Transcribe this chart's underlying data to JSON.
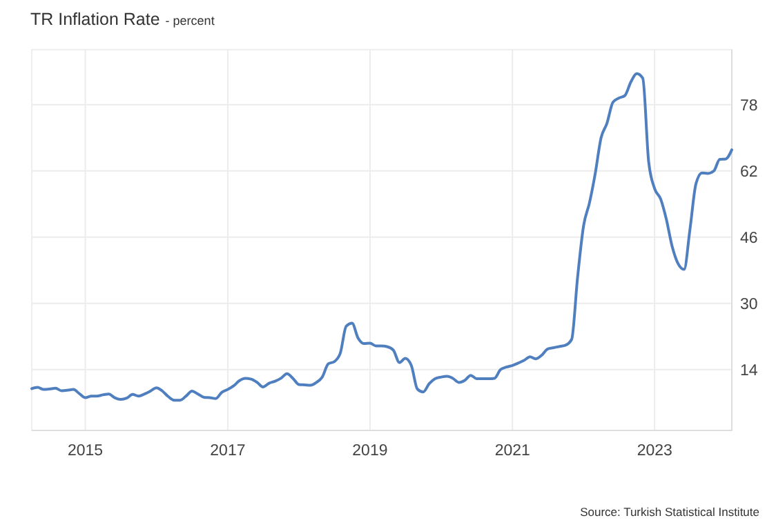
{
  "chart_data": {
    "type": "line",
    "title": "TR Inflation Rate",
    "subtitle": "- percent",
    "annotations": [
      "Source: Turkish Statistical Institute"
    ],
    "x": [
      "2014-04",
      "2014-05",
      "2014-06",
      "2014-07",
      "2014-08",
      "2014-09",
      "2014-10",
      "2014-11",
      "2014-12",
      "2015-01",
      "2015-02",
      "2015-03",
      "2015-04",
      "2015-05",
      "2015-06",
      "2015-07",
      "2015-08",
      "2015-09",
      "2015-10",
      "2015-11",
      "2015-12",
      "2016-01",
      "2016-02",
      "2016-03",
      "2016-04",
      "2016-05",
      "2016-06",
      "2016-07",
      "2016-08",
      "2016-09",
      "2016-10",
      "2016-11",
      "2016-12",
      "2017-01",
      "2017-02",
      "2017-03",
      "2017-04",
      "2017-05",
      "2017-06",
      "2017-07",
      "2017-08",
      "2017-09",
      "2017-10",
      "2017-11",
      "2017-12",
      "2018-01",
      "2018-02",
      "2018-03",
      "2018-04",
      "2018-05",
      "2018-06",
      "2018-07",
      "2018-08",
      "2018-09",
      "2018-10",
      "2018-11",
      "2018-12",
      "2019-01",
      "2019-02",
      "2019-03",
      "2019-04",
      "2019-05",
      "2019-06",
      "2019-07",
      "2019-08",
      "2019-09",
      "2019-10",
      "2019-11",
      "2019-12",
      "2020-01",
      "2020-02",
      "2020-03",
      "2020-04",
      "2020-05",
      "2020-06",
      "2020-07",
      "2020-08",
      "2020-09",
      "2020-10",
      "2020-11",
      "2020-12",
      "2021-01",
      "2021-02",
      "2021-03",
      "2021-04",
      "2021-05",
      "2021-06",
      "2021-07",
      "2021-08",
      "2021-09",
      "2021-10",
      "2021-11",
      "2021-12",
      "2022-01",
      "2022-02",
      "2022-03",
      "2022-04",
      "2022-05",
      "2022-06",
      "2022-07",
      "2022-08",
      "2022-09",
      "2022-10",
      "2022-11",
      "2022-12",
      "2023-01",
      "2023-02",
      "2023-03",
      "2023-04",
      "2023-05",
      "2023-06",
      "2023-07",
      "2023-08",
      "2023-09",
      "2023-10",
      "2023-11",
      "2023-12",
      "2024-01",
      "2024-02"
    ],
    "series": [
      {
        "color": "#4f7fbf",
        "values": [
          9.4,
          9.7,
          9.2,
          9.3,
          9.5,
          8.9,
          9.0,
          9.2,
          8.2,
          7.2,
          7.6,
          7.6,
          7.9,
          8.1,
          7.2,
          6.8,
          7.1,
          8.0,
          7.6,
          8.1,
          8.8,
          9.6,
          8.8,
          7.5,
          6.6,
          6.6,
          7.6,
          8.8,
          8.1,
          7.3,
          7.2,
          7.0,
          8.5,
          9.2,
          10.1,
          11.3,
          11.9,
          11.7,
          10.9,
          9.8,
          10.7,
          11.2,
          11.9,
          13.0,
          11.9,
          10.4,
          10.3,
          10.2,
          10.9,
          12.2,
          15.4,
          15.9,
          17.9,
          24.5,
          25.2,
          21.6,
          20.3,
          20.4,
          19.7,
          19.7,
          19.5,
          18.7,
          15.7,
          16.7,
          15.0,
          9.3,
          8.6,
          10.6,
          11.8,
          12.2,
          12.4,
          11.9,
          10.9,
          11.4,
          12.6,
          11.8,
          11.8,
          11.8,
          11.9,
          14.0,
          14.6,
          15.0,
          15.6,
          16.2,
          17.1,
          16.6,
          17.5,
          19.0,
          19.3,
          19.6,
          19.9,
          21.3,
          36.1,
          48.7,
          54.4,
          61.1,
          70.0,
          73.5,
          78.6,
          79.6,
          80.2,
          83.5,
          85.5,
          84.4,
          64.3,
          57.7,
          55.2,
          50.5,
          43.7,
          39.6,
          38.2,
          47.8,
          58.9,
          61.5,
          61.4,
          62.0,
          64.8,
          64.9,
          67.1
        ]
      }
    ],
    "xlim": [
      "2014-04",
      "2024-02"
    ],
    "xticks": [
      "2015",
      "2017",
      "2019",
      "2021",
      "2023"
    ],
    "ylim": [
      -0.7,
      91.3
    ],
    "yticks": [
      14,
      30,
      46,
      62,
      78
    ],
    "grid": true
  }
}
